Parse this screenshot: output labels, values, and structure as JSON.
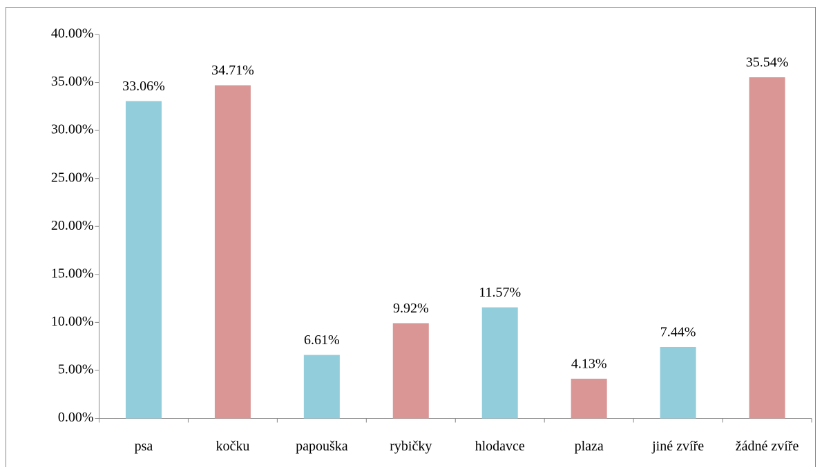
{
  "chart_data": {
    "type": "bar",
    "categories": [
      "psa",
      "kočku",
      "papouška",
      "rybičky",
      "hlodavce",
      "plaza",
      "jiné zvíře",
      "žádné zvíře"
    ],
    "values": [
      33.06,
      34.71,
      6.61,
      9.92,
      11.57,
      4.13,
      7.44,
      35.54
    ],
    "value_labels": [
      "33.06%",
      "34.71%",
      "6.61%",
      "9.92%",
      "11.57%",
      "4.13%",
      "7.44%",
      "35.54%"
    ],
    "colors": [
      "#92cddc",
      "#d99694",
      "#92cddc",
      "#d99694",
      "#92cddc",
      "#d99694",
      "#92cddc",
      "#d99694"
    ],
    "ylim": [
      0,
      40
    ],
    "yticks": [
      {
        "value": 0,
        "label": "0.00%"
      },
      {
        "value": 5,
        "label": "5.00%"
      },
      {
        "value": 10,
        "label": "10.00%"
      },
      {
        "value": 15,
        "label": "15.00%"
      },
      {
        "value": 20,
        "label": "20.00%"
      },
      {
        "value": 25,
        "label": "25.00%"
      },
      {
        "value": 30,
        "label": "30.00%"
      },
      {
        "value": 35,
        "label": "35.00%"
      },
      {
        "value": 40,
        "label": "40.00%"
      }
    ],
    "grid": false
  }
}
